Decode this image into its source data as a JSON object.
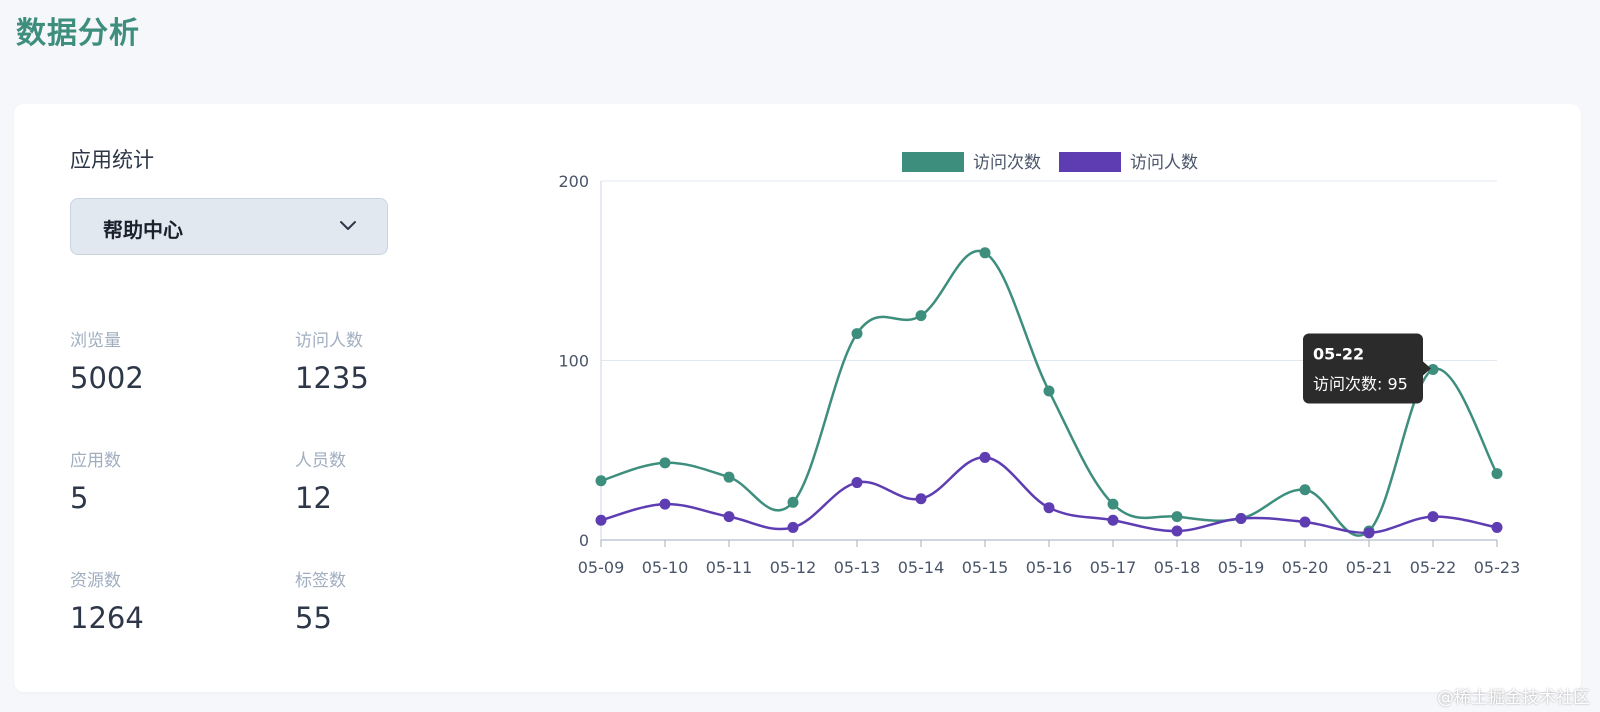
{
  "page": {
    "title": "数据分析"
  },
  "app_stats": {
    "title": "应用统计",
    "selected_app": "帮助中心",
    "stats": [
      {
        "label": "浏览量",
        "value": "5002"
      },
      {
        "label": "访问人数",
        "value": "1235"
      },
      {
        "label": "应用数",
        "value": "5"
      },
      {
        "label": "人员数",
        "value": "12"
      },
      {
        "label": "资源数",
        "value": "1264"
      },
      {
        "label": "标签数",
        "value": "55"
      }
    ]
  },
  "colors": {
    "accent": "#3e8e7e",
    "series_visits": "#3e8e7e",
    "series_visitors": "#5e3db3"
  },
  "chart_data": {
    "type": "line",
    "x": [
      "05-09",
      "05-10",
      "05-11",
      "05-12",
      "05-13",
      "05-14",
      "05-15",
      "05-16",
      "05-17",
      "05-18",
      "05-19",
      "05-20",
      "05-21",
      "05-22",
      "05-23"
    ],
    "ylim": [
      0,
      200
    ],
    "yticks": [
      0,
      100,
      200
    ],
    "grid": true,
    "legend": "top-center",
    "series": [
      {
        "name": "访问次数",
        "color": "#3e8e7e",
        "values": [
          33,
          43,
          35,
          21,
          115,
          125,
          160,
          83,
          20,
          13,
          12,
          28,
          5,
          95,
          37
        ]
      },
      {
        "name": "访问人数",
        "color": "#5e3db3",
        "values": [
          11,
          20,
          13,
          7,
          32,
          23,
          46,
          18,
          11,
          5,
          12,
          10,
          4,
          13,
          7
        ]
      }
    ],
    "tooltip": {
      "title": "05-22",
      "text": "访问次数: 95"
    }
  },
  "watermark": "@稀土掘金技术社区"
}
